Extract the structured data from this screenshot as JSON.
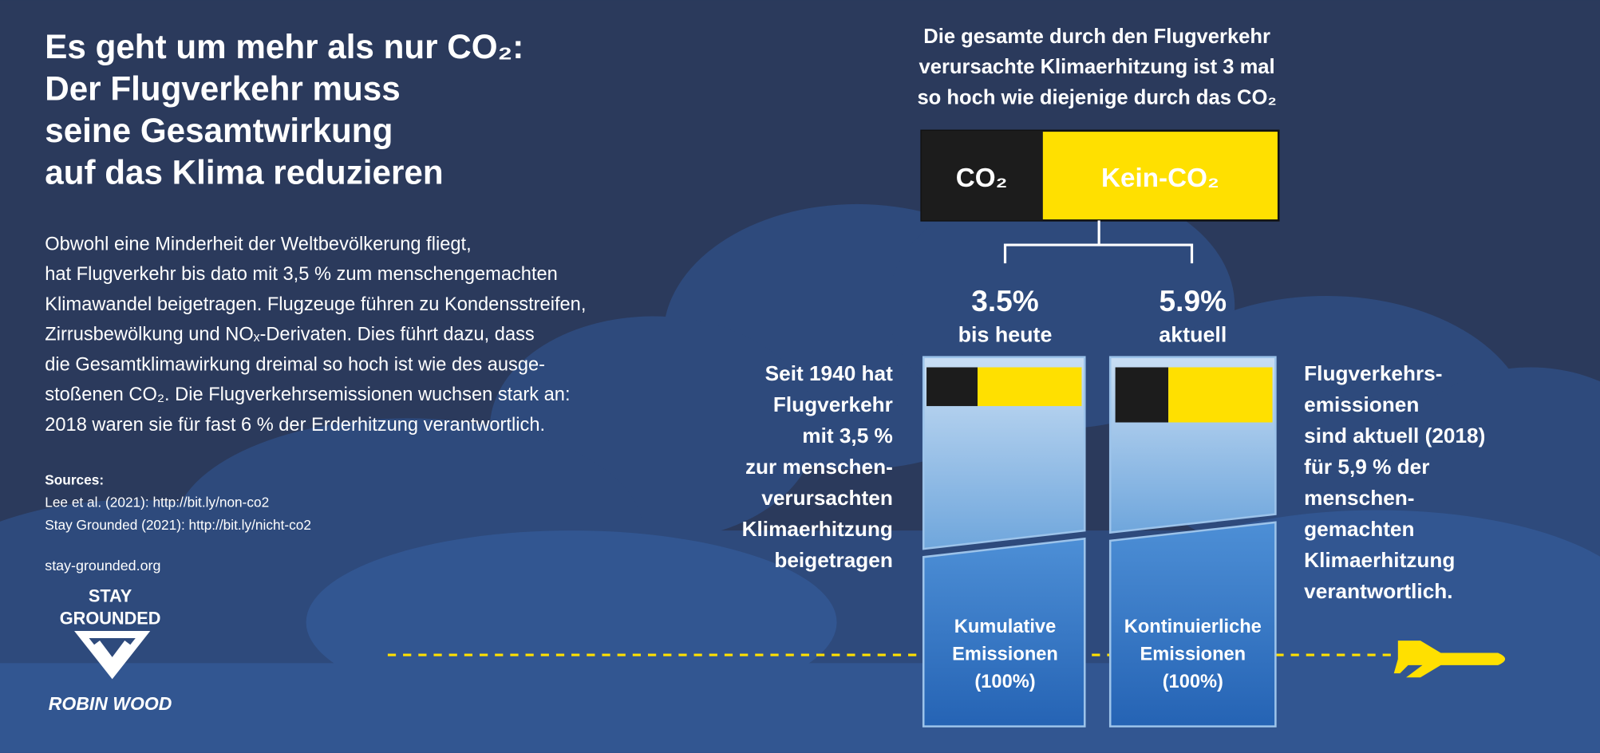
{
  "title": [
    "Es geht um mehr als nur CO₂:",
    "Der Flugverkehr muss",
    "seine Gesamtwirkung",
    "auf das Klima reduzieren"
  ],
  "body": [
    "Obwohl eine Minderheit der Weltbevölkerung fliegt,",
    "hat Flugverkehr bis dato mit 3,5 % zum menschengemachten",
    "Klimawandel beigetragen. Flugzeuge führen zu Kondensstreifen,",
    "Zirrusbewölkung und NOₓ-Derivaten. Dies führt dazu, dass",
    "die Gesamtklimawirkung dreimal so hoch ist wie des ausge-",
    "stoßenen CO₂. Die Flugverkehrsemissionen wuchsen stark an:",
    "2018 waren sie für fast 6 % der Erderhitzung verantwortlich."
  ],
  "sources": {
    "heading": "Sources:",
    "items": [
      "Lee et al. (2021): http://bit.ly/non-co2",
      "Stay Grounded (2021): http://bit.ly/nicht-co2"
    ]
  },
  "website": "stay-grounded.org",
  "logo": {
    "line1": "STAY",
    "line2": "GROUNDED",
    "partner": "ROBIN WOOD"
  },
  "diagram": {
    "headline": [
      "Die gesamte durch den Flugverkehr",
      "verursachte Klimaerhitzung ist 3 mal",
      "so hoch wie diejenige durch das CO₂"
    ],
    "bar": {
      "co2": "CO₂",
      "non_co2": "Kein-CO₂"
    },
    "left": {
      "value": "3.5%",
      "label": "bis heute",
      "column": [
        "Kumulative",
        "Emissionen",
        "(100%)"
      ],
      "side_text": [
        "Seit 1940 hat",
        "Flugverkehr",
        "mit 3,5 %",
        "zur menschen-",
        "verursachten",
        "Klimaerhitzung",
        "beigetragen"
      ]
    },
    "right": {
      "value": "5.9%",
      "label": "aktuell",
      "column": [
        "Kontinuierliche",
        "Emissionen",
        "(100%)"
      ],
      "side_text": [
        "Flugverkehrs-",
        "emissionen",
        "sind aktuell (2018)",
        "für 5,9 % der",
        "menschen-",
        "gemachten",
        "Klimaerhitzung",
        "verantwortlich."
      ]
    }
  }
}
